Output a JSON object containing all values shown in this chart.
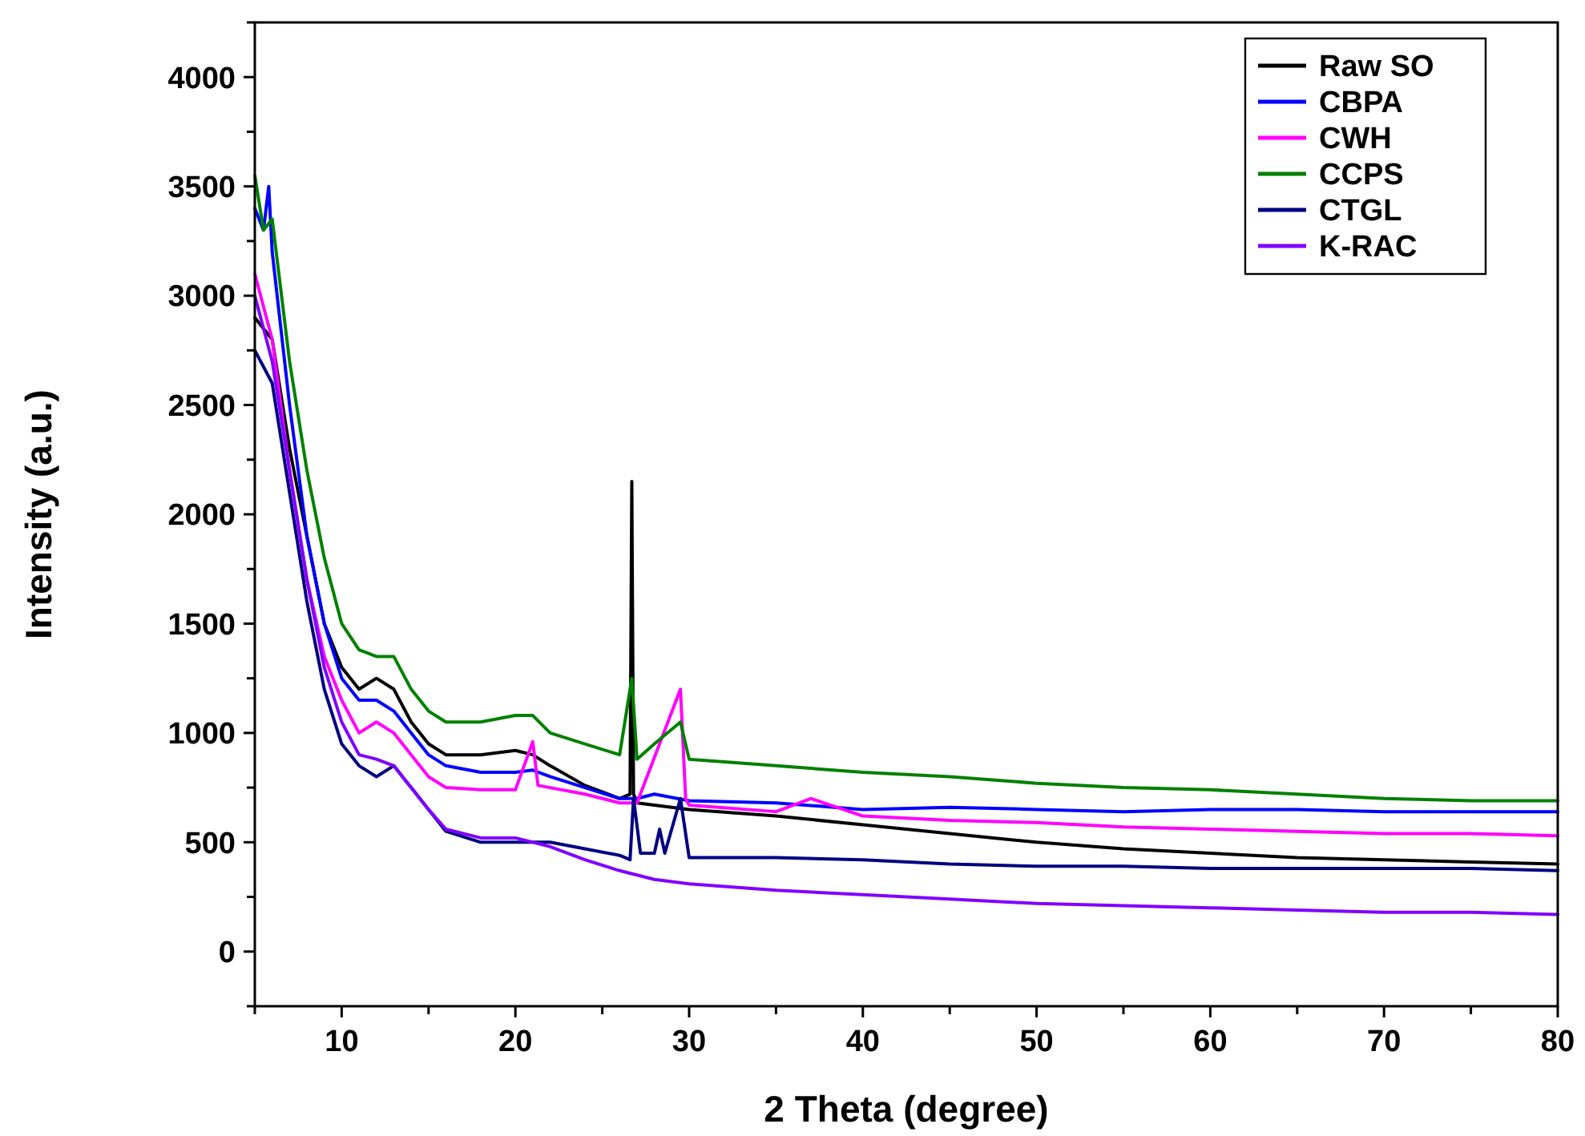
{
  "chart_data": {
    "type": "line",
    "xlabel": "2 Theta (degree)",
    "ylabel": "Intensity (a.u.)",
    "xlim": [
      5,
      80
    ],
    "ylim": [
      -250,
      4250
    ],
    "xticks": [
      {
        "value": 5,
        "label": null
      },
      10,
      {
        "value": 15,
        "label": null
      },
      20,
      {
        "value": 25,
        "label": null
      },
      30,
      {
        "value": 35,
        "label": null
      },
      40,
      {
        "value": 45,
        "label": null
      },
      50,
      {
        "value": 55,
        "label": null
      },
      60,
      {
        "value": 65,
        "label": null
      },
      70,
      {
        "value": 75,
        "label": null
      },
      80
    ],
    "yticks": [
      {
        "value": -250,
        "label": null
      },
      0,
      {
        "value": 250,
        "label": null
      },
      500,
      {
        "value": 750,
        "label": null
      },
      1000,
      {
        "value": 1250,
        "label": null
      },
      1500,
      {
        "value": 1750,
        "label": null
      },
      2000,
      {
        "value": 2250,
        "label": null
      },
      2500,
      {
        "value": 2750,
        "label": null
      },
      3000,
      {
        "value": 3250,
        "label": null
      },
      3500,
      {
        "value": 3750,
        "label": null
      },
      4000,
      {
        "value": 4250,
        "label": null
      }
    ],
    "grid": false,
    "legend": "top right",
    "marker": "none",
    "line_style": "solid",
    "series": [
      {
        "name": "Raw SO",
        "color": "#000000",
        "x": [
          5,
          6,
          7,
          8,
          9,
          10,
          11,
          12,
          13,
          14,
          15,
          16,
          18,
          20,
          21,
          22,
          24,
          26,
          26.6,
          26.7,
          26.8,
          27,
          30,
          35,
          40,
          45,
          50,
          55,
          60,
          65,
          70,
          75,
          80
        ],
        "values": [
          2900,
          2800,
          2300,
          1900,
          1500,
          1300,
          1200,
          1250,
          1200,
          1050,
          950,
          900,
          900,
          920,
          900,
          850,
          760,
          700,
          720,
          2150,
          720,
          680,
          650,
          620,
          580,
          540,
          500,
          470,
          450,
          430,
          420,
          410,
          400
        ]
      },
      {
        "name": "CBPA",
        "color": "#0000ff",
        "x": [
          5,
          5.5,
          5.8,
          6,
          7,
          8,
          9,
          10,
          11,
          12,
          13,
          14,
          15,
          16,
          18,
          20,
          21,
          22,
          24,
          26,
          27,
          28,
          30,
          35,
          40,
          45,
          50,
          55,
          60,
          65,
          70,
          75,
          80
        ],
        "values": [
          3400,
          3300,
          3500,
          3200,
          2500,
          1900,
          1500,
          1250,
          1150,
          1150,
          1100,
          1000,
          900,
          850,
          820,
          820,
          830,
          800,
          750,
          700,
          700,
          720,
          690,
          680,
          650,
          660,
          650,
          640,
          650,
          650,
          640,
          640,
          640
        ]
      },
      {
        "name": "CWH",
        "color": "#ff00ff",
        "x": [
          5,
          6,
          7,
          8,
          9,
          10,
          11,
          12,
          13,
          14,
          15,
          16,
          18,
          20,
          21,
          21.3,
          24,
          26,
          27,
          29.5,
          29.8,
          30,
          35,
          37,
          40,
          45,
          50,
          55,
          60,
          65,
          70,
          75,
          80
        ],
        "values": [
          3100,
          2800,
          2200,
          1700,
          1350,
          1150,
          1000,
          1050,
          1000,
          900,
          800,
          750,
          740,
          740,
          960,
          760,
          720,
          680,
          680,
          1200,
          700,
          670,
          640,
          700,
          620,
          600,
          590,
          570,
          560,
          550,
          540,
          540,
          530
        ]
      },
      {
        "name": "CCPS",
        "color": "#008000",
        "x": [
          5,
          5.5,
          6,
          7,
          8,
          9,
          10,
          11,
          12,
          13,
          14,
          15,
          16,
          18,
          20,
          21,
          22,
          24,
          26,
          26.7,
          27,
          28,
          29.5,
          30,
          35,
          40,
          45,
          50,
          55,
          60,
          65,
          70,
          75,
          80
        ],
        "values": [
          3550,
          3300,
          3350,
          2700,
          2200,
          1800,
          1500,
          1380,
          1350,
          1350,
          1200,
          1100,
          1050,
          1050,
          1080,
          1080,
          1000,
          950,
          900,
          1250,
          880,
          950,
          1050,
          880,
          850,
          820,
          800,
          770,
          750,
          740,
          720,
          700,
          690,
          690
        ]
      },
      {
        "name": "CTGL",
        "color": "#000080",
        "x": [
          5,
          6,
          7,
          8,
          9,
          10,
          11,
          12,
          13,
          14,
          15,
          16,
          18,
          20,
          22,
          24,
          26,
          26.6,
          26.8,
          27.2,
          28,
          28.3,
          28.6,
          29.5,
          30,
          35,
          40,
          45,
          50,
          55,
          60,
          65,
          70,
          75,
          80
        ],
        "values": [
          2750,
          2600,
          2100,
          1600,
          1200,
          950,
          850,
          800,
          850,
          750,
          650,
          550,
          500,
          500,
          500,
          470,
          440,
          420,
          700,
          450,
          450,
          560,
          450,
          700,
          430,
          430,
          420,
          400,
          390,
          390,
          380,
          380,
          380,
          380,
          370
        ]
      },
      {
        "name": "K-RAC",
        "color": "#8000ff",
        "x": [
          5,
          6,
          7,
          8,
          9,
          10,
          11,
          12,
          13,
          14,
          15,
          16,
          18,
          20,
          22,
          24,
          26,
          28,
          30,
          35,
          40,
          45,
          50,
          55,
          60,
          65,
          70,
          75,
          80
        ],
        "values": [
          3000,
          2700,
          2200,
          1700,
          1300,
          1050,
          900,
          880,
          850,
          750,
          650,
          560,
          520,
          520,
          480,
          420,
          370,
          330,
          310,
          280,
          260,
          240,
          220,
          210,
          200,
          190,
          180,
          180,
          170
        ]
      }
    ]
  }
}
